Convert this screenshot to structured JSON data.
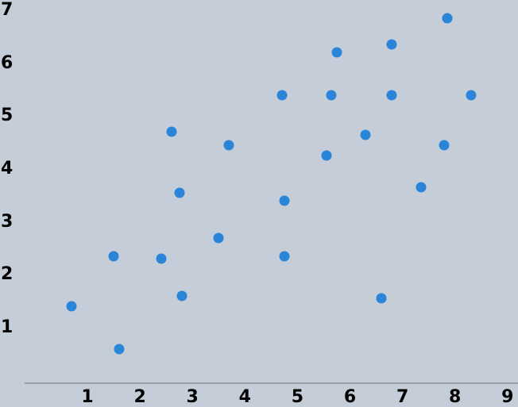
{
  "chart_data": {
    "type": "scatter",
    "title": "",
    "xlabel": "",
    "ylabel": "",
    "grid": false,
    "legend": null,
    "x_tick_labels": [
      "1",
      "2",
      "3",
      "4",
      "5",
      "6",
      "7",
      "8",
      "9"
    ],
    "y_tick_labels": [
      "1",
      "2",
      "3",
      "4",
      "5",
      "6",
      "7"
    ],
    "xlim": [
      -0.2,
      9.2
    ],
    "ylim": [
      -0.05,
      7.05
    ],
    "points": [
      {
        "x": 0.7,
        "y": 1.4
      },
      {
        "x": 1.5,
        "y": 2.35
      },
      {
        "x": 1.6,
        "y": 0.6
      },
      {
        "x": 2.4,
        "y": 2.3
      },
      {
        "x": 2.6,
        "y": 4.7
      },
      {
        "x": 2.75,
        "y": 3.55
      },
      {
        "x": 2.8,
        "y": 1.6
      },
      {
        "x": 3.5,
        "y": 2.7
      },
      {
        "x": 3.7,
        "y": 4.45
      },
      {
        "x": 4.7,
        "y": 5.4
      },
      {
        "x": 4.75,
        "y": 3.4
      },
      {
        "x": 4.75,
        "y": 2.35
      },
      {
        "x": 5.55,
        "y": 4.25
      },
      {
        "x": 5.65,
        "y": 5.4
      },
      {
        "x": 5.75,
        "y": 6.2
      },
      {
        "x": 6.3,
        "y": 4.65
      },
      {
        "x": 6.6,
        "y": 1.55
      },
      {
        "x": 6.8,
        "y": 5.4
      },
      {
        "x": 6.8,
        "y": 6.35
      },
      {
        "x": 7.35,
        "y": 3.65
      },
      {
        "x": 7.8,
        "y": 4.45
      },
      {
        "x": 7.85,
        "y": 6.85
      },
      {
        "x": 8.3,
        "y": 5.4
      }
    ],
    "colors": {
      "background": "#c5ced8",
      "marker": "#2a85d8",
      "axis_line": "#9aa0a8",
      "tick_text": "#000000"
    }
  }
}
